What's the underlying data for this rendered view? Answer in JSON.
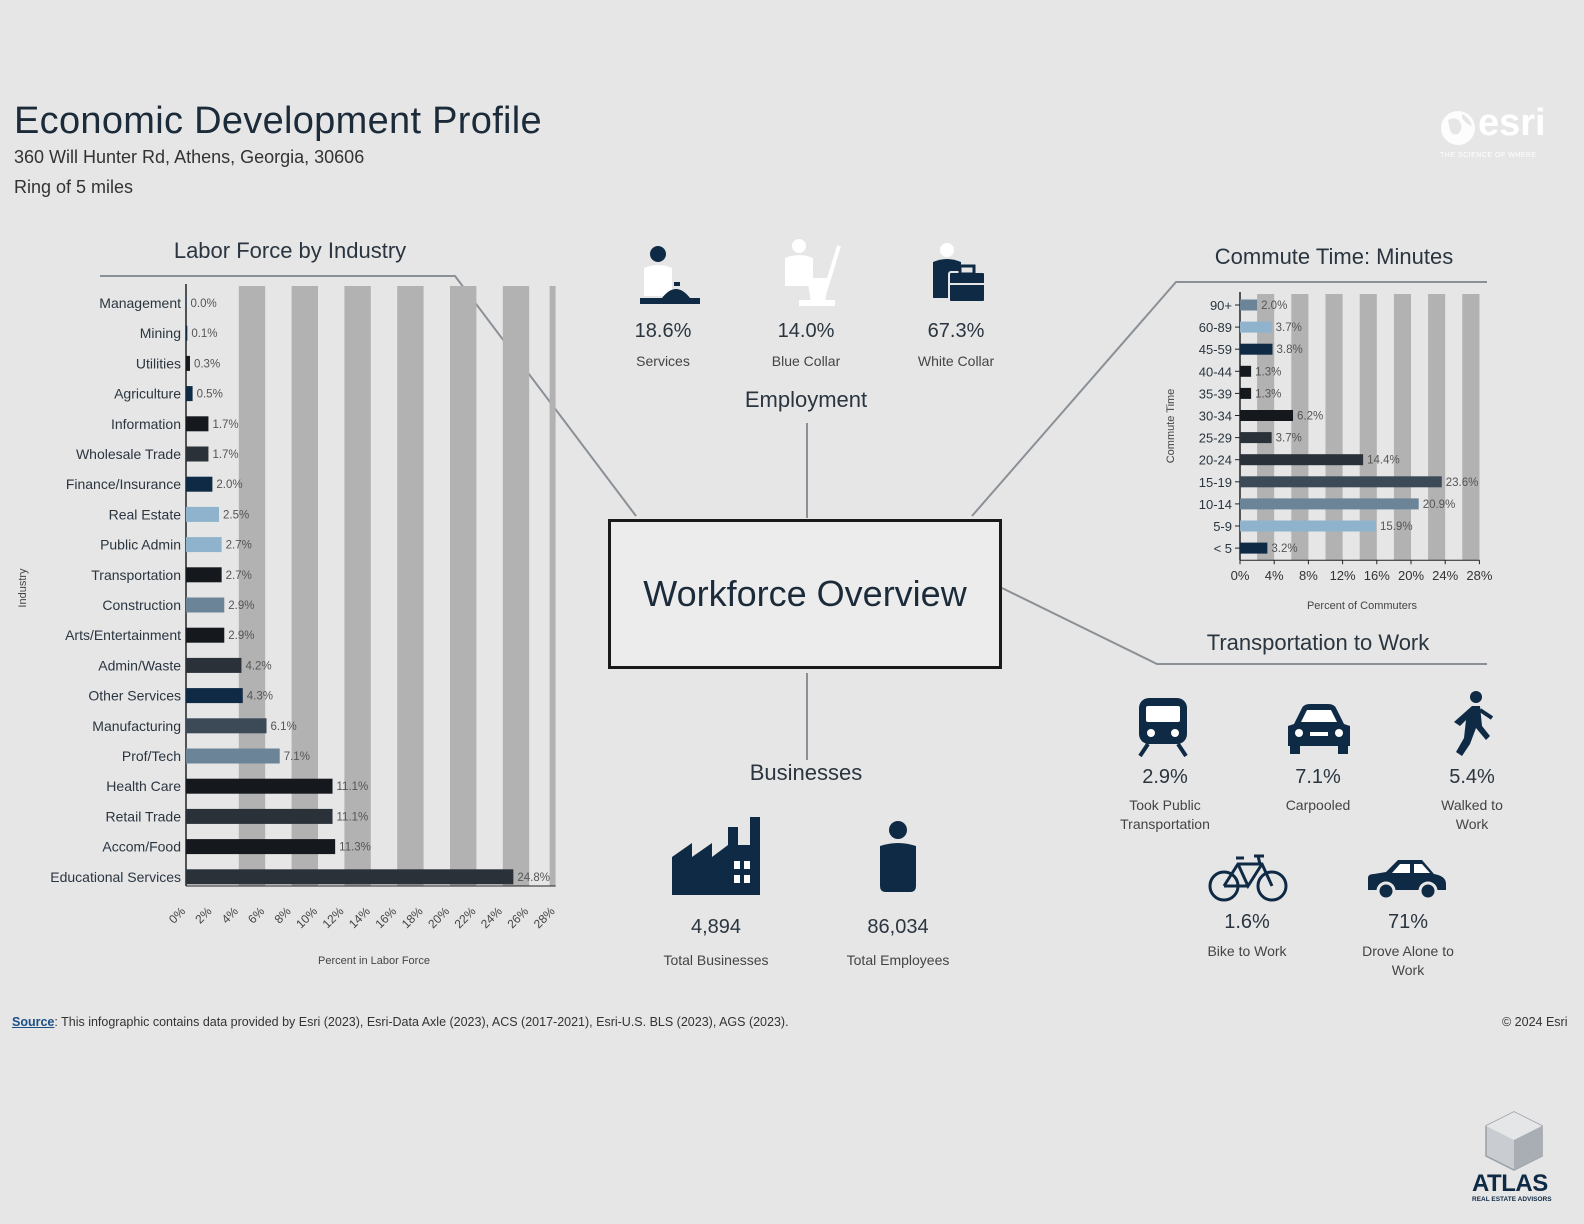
{
  "header": {
    "title": "Economic Development Profile",
    "address": "360 Will Hunter Rd, Athens, Georgia, 30606",
    "ring": "Ring of 5 miles"
  },
  "logos": {
    "esri": "esri",
    "esri_tagline": "THE SCIENCE OF WHERE",
    "atlas": "ATLAS",
    "atlas_tagline": "REAL ESTATE ADVISORS"
  },
  "center_title": "Workforce Overview",
  "employment": {
    "title": "Employment",
    "items": [
      {
        "pct": "18.6%",
        "label": "Services",
        "icon": "services-worker-icon"
      },
      {
        "pct": "14.0%",
        "label": "Blue Collar",
        "icon": "cleaning-worker-icon"
      },
      {
        "pct": "67.3%",
        "label": "White Collar",
        "icon": "briefcase-worker-icon"
      }
    ]
  },
  "businesses": {
    "title": "Businesses",
    "total_businesses": "4,894",
    "total_businesses_label": "Total Businesses",
    "total_employees": "86,034",
    "total_employees_label": "Total Employees"
  },
  "transportation": {
    "title": "Transportation to Work",
    "items": [
      {
        "pct": "2.9%",
        "label": "Took Public Transportation",
        "icon": "train-icon"
      },
      {
        "pct": "7.1%",
        "label": "Carpooled",
        "icon": "car-front-icon"
      },
      {
        "pct": "5.4%",
        "label": "Walked to Work",
        "icon": "walker-icon"
      },
      {
        "pct": "1.6%",
        "label": "Bike to Work",
        "icon": "bicycle-icon"
      },
      {
        "pct": "71%",
        "label": "Drove Alone to Work",
        "icon": "car-side-icon"
      }
    ]
  },
  "footer": {
    "source_label": "Source",
    "source_text": ": This infographic contains data provided by Esri (2023), Esri-Data Axle (2023), ACS (2017-2021), Esri-U.S. BLS (2023), AGS (2023).",
    "copyright": "© 2024 Esri"
  },
  "colors": {
    "navy": "#0e2a44",
    "dark": "#15191e",
    "charcoal": "#2a3138",
    "slate": "#3c4a58",
    "steel": "#6c8498",
    "light_blue": "#8fb3cc",
    "grid_band": "#b2b2b2"
  },
  "chart_data": [
    {
      "type": "bar",
      "orientation": "horizontal",
      "title": "Labor Force by Industry",
      "xlabel": "Percent in Labor Force",
      "ylabel": "Industry",
      "xlim": [
        0,
        28
      ],
      "xticks": [
        "0%",
        "2%",
        "4%",
        "6%",
        "8%",
        "10%",
        "12%",
        "14%",
        "16%",
        "18%",
        "20%",
        "22%",
        "24%",
        "26%",
        "28%"
      ],
      "categories": [
        "Management",
        "Mining",
        "Utilities",
        "Agriculture",
        "Information",
        "Wholesale Trade",
        "Finance/Insurance",
        "Real Estate",
        "Public Admin",
        "Transportation",
        "Construction",
        "Arts/Entertainment",
        "Admin/Waste",
        "Other Services",
        "Manufacturing",
        "Prof/Tech",
        "Health Care",
        "Retail Trade",
        "Accom/Food",
        "Educational Services"
      ],
      "values": [
        0.0,
        0.1,
        0.3,
        0.5,
        1.7,
        1.7,
        2.0,
        2.5,
        2.7,
        2.7,
        2.9,
        2.9,
        4.2,
        4.3,
        6.1,
        7.1,
        11.1,
        11.1,
        11.3,
        24.8
      ],
      "labels": [
        "0.0%",
        "0.1%",
        "0.3%",
        "0.5%",
        "1.7%",
        "1.7%",
        "2.0%",
        "2.5%",
        "2.7%",
        "2.7%",
        "2.9%",
        "2.9%",
        "4.2%",
        "4.3%",
        "6.1%",
        "7.1%",
        "11.1%",
        "11.1%",
        "11.3%",
        "24.8%"
      ],
      "bar_colors": [
        "#0e2a44",
        "#0e2a44",
        "#15191e",
        "#0e2a44",
        "#15191e",
        "#2a3138",
        "#0e2a44",
        "#8fb3cc",
        "#8fb3cc",
        "#15191e",
        "#6c8498",
        "#15191e",
        "#2a3138",
        "#0e2a44",
        "#3c4a58",
        "#6c8498",
        "#15191e",
        "#2a3138",
        "#15191e",
        "#2a3138"
      ],
      "grid": true,
      "legend": "none"
    },
    {
      "type": "bar",
      "orientation": "horizontal",
      "title": "Commute Time: Minutes",
      "xlabel": "Percent of Commuters",
      "ylabel": "Commute Time",
      "xlim": [
        0,
        28
      ],
      "xticks": [
        "0%",
        "4%",
        "8%",
        "12%",
        "16%",
        "20%",
        "24%",
        "28%"
      ],
      "categories": [
        "90+",
        "60-89",
        "45-59",
        "40-44",
        "35-39",
        "30-34",
        "25-29",
        "20-24",
        "15-19",
        "10-14",
        "5-9",
        "< 5"
      ],
      "values": [
        2.0,
        3.7,
        3.8,
        1.3,
        1.3,
        6.2,
        3.7,
        14.4,
        23.6,
        20.9,
        15.9,
        3.2
      ],
      "labels": [
        "2.0%",
        "3.7%",
        "3.8%",
        "1.3%",
        "1.3%",
        "6.2%",
        "3.7%",
        "14.4%",
        "23.6%",
        "20.9%",
        "15.9%",
        "3.2%"
      ],
      "bar_colors": [
        "#6c8498",
        "#8fb3cc",
        "#0e2a44",
        "#15191e",
        "#15191e",
        "#15191e",
        "#2a3138",
        "#2a3138",
        "#3c4a58",
        "#6c8498",
        "#8fb3cc",
        "#0e2a44"
      ],
      "grid": true,
      "legend": "none"
    }
  ]
}
